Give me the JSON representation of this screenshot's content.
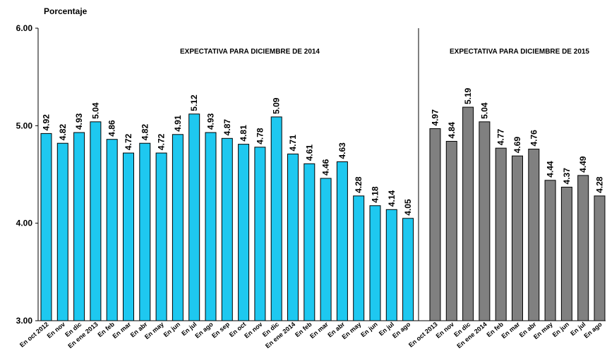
{
  "chart_data": {
    "type": "bar",
    "ylabel": "Porcentaje",
    "ylim": [
      3.0,
      6.0
    ],
    "yticks": [
      "3.00",
      "4.00",
      "5.00",
      "6.00"
    ],
    "grid": false,
    "legend": "none",
    "series": [
      {
        "section_label": "EXPECTATIVA PARA DICIEMBRE DE 2014",
        "color": "#1EC8F0",
        "categories": [
          "En oct 2012",
          "En nov",
          "En dic",
          "En ene 2013",
          "En feb",
          "En mar",
          "En abr",
          "En may",
          "En jun",
          "En jul",
          "En ago",
          "En sep",
          "En oct",
          "En nov",
          "En dic",
          "En ene 2014",
          "En feb",
          "En mar",
          "En abr",
          "En may",
          "En jun",
          "En jul",
          "En ago"
        ],
        "values": [
          4.92,
          4.82,
          4.93,
          5.04,
          4.86,
          4.72,
          4.82,
          4.72,
          4.91,
          5.12,
          4.93,
          4.87,
          4.81,
          4.78,
          5.09,
          4.71,
          4.61,
          4.46,
          4.63,
          4.28,
          4.18,
          4.14,
          4.05
        ]
      },
      {
        "section_label": "EXPECTATIVA PARA DICIEMBRE DE 2015",
        "color": "#808080",
        "categories": [
          "En oct 2013",
          "En nov",
          "En dic",
          "En ene 2014",
          "En feb",
          "En mar",
          "En abr",
          "En may",
          "En jun",
          "En jul",
          "En ago"
        ],
        "values": [
          4.97,
          4.84,
          5.19,
          5.04,
          4.77,
          4.69,
          4.76,
          4.44,
          4.37,
          4.49,
          4.28
        ]
      }
    ]
  }
}
